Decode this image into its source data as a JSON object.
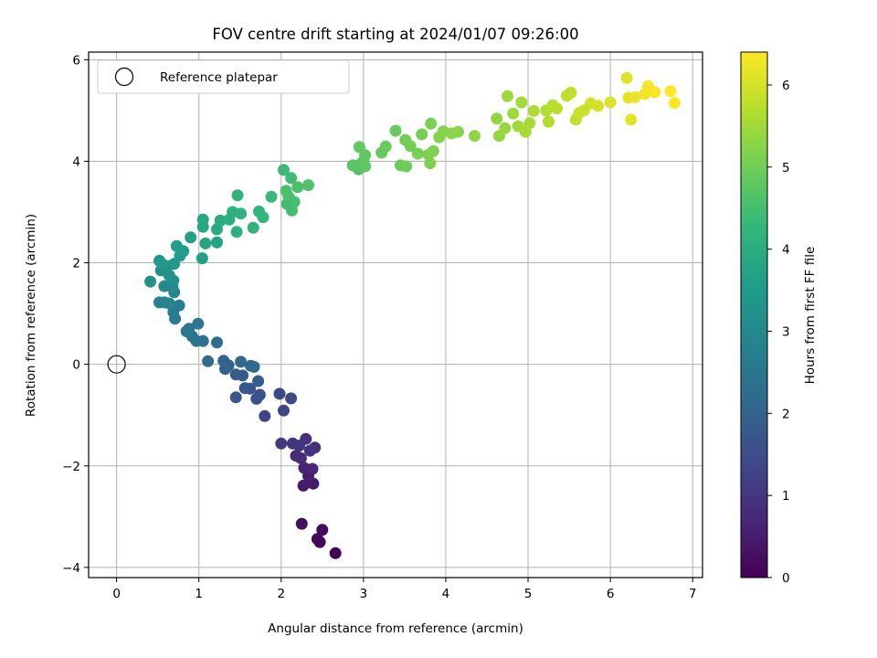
{
  "chart_data": {
    "type": "scatter",
    "title": "FOV centre drift starting at 2024/01/07 09:26:00",
    "xlabel": "Angular distance from reference (arcmin)",
    "ylabel": "Rotation from reference (arcmin)",
    "xlim": [
      -0.34,
      7.12
    ],
    "ylim": [
      -4.2,
      6.15
    ],
    "x_ticks": [
      "0",
      "1",
      "2",
      "3",
      "4",
      "5",
      "6",
      "7"
    ],
    "y_ticks": [
      "−4",
      "−2",
      "0",
      "2",
      "4",
      "6"
    ],
    "grid": true,
    "legend": {
      "placement": "top-left",
      "label": "Reference platepar"
    },
    "reference_point": {
      "x": 0,
      "y": 0
    },
    "colorbar": {
      "label": "Hours from first FF file",
      "range": [
        0,
        6.4
      ],
      "ticks": [
        "0",
        "1",
        "2",
        "3",
        "4",
        "5",
        "6"
      ],
      "colormap": "viridis",
      "colors": [
        "#440154",
        "#482878",
        "#3e4989",
        "#31688e",
        "#26828e",
        "#1f9e89",
        "#35b779",
        "#6ece58",
        "#b5de2b",
        "#fde725"
      ]
    },
    "series": [
      {
        "points": [
          [
            2.66,
            -3.72,
            0.05
          ],
          [
            2.47,
            -3.5,
            0.1
          ],
          [
            2.44,
            -3.44,
            0.15
          ],
          [
            2.5,
            -3.26,
            0.2
          ],
          [
            2.25,
            -3.14,
            0.25
          ],
          [
            2.39,
            -2.35,
            0.45
          ],
          [
            2.27,
            -2.39,
            0.5
          ],
          [
            2.33,
            -2.2,
            0.55
          ],
          [
            2.28,
            -2.04,
            0.6
          ],
          [
            2.38,
            -2.06,
            0.65
          ],
          [
            2.24,
            -1.85,
            0.75
          ],
          [
            2.18,
            -1.8,
            0.8
          ],
          [
            2.41,
            -1.64,
            0.85
          ],
          [
            2.3,
            -1.47,
            0.9
          ],
          [
            2.35,
            -1.7,
            0.95
          ],
          [
            2.22,
            -1.6,
            1.0
          ],
          [
            2.14,
            -1.56,
            1.05
          ],
          [
            2.0,
            -1.56,
            1.1
          ],
          [
            1.8,
            -1.02,
            1.3
          ],
          [
            2.03,
            -0.91,
            1.35
          ],
          [
            1.98,
            -0.58,
            1.4
          ],
          [
            2.12,
            -0.67,
            1.45
          ],
          [
            1.7,
            -0.68,
            1.55
          ],
          [
            1.74,
            -0.6,
            1.6
          ],
          [
            1.62,
            -0.48,
            1.65
          ],
          [
            1.56,
            -0.47,
            1.7
          ],
          [
            1.45,
            -0.65,
            1.75
          ],
          [
            1.53,
            -0.22,
            1.8
          ],
          [
            1.45,
            -0.2,
            1.85
          ],
          [
            1.72,
            -0.33,
            1.9
          ],
          [
            1.32,
            -0.09,
            1.95
          ],
          [
            1.36,
            -0.02,
            2.0
          ],
          [
            1.3,
            0.07,
            2.05
          ],
          [
            1.51,
            0.05,
            2.1
          ],
          [
            1.63,
            -0.03,
            2.15
          ],
          [
            1.67,
            -0.05,
            2.2
          ],
          [
            1.11,
            0.06,
            2.25
          ],
          [
            1.22,
            0.43,
            2.3
          ],
          [
            1.05,
            0.46,
            2.35
          ],
          [
            0.97,
            0.46,
            2.4
          ],
          [
            0.92,
            0.55,
            2.45
          ],
          [
            0.88,
            0.7,
            2.5
          ],
          [
            0.99,
            0.8,
            2.55
          ],
          [
            0.85,
            0.65,
            2.6
          ],
          [
            0.71,
            0.9,
            2.65
          ],
          [
            0.76,
            1.16,
            2.7
          ],
          [
            0.69,
            1.03,
            2.75
          ],
          [
            0.58,
            1.22,
            2.8
          ],
          [
            0.52,
            1.22,
            2.85
          ],
          [
            0.64,
            1.2,
            2.9
          ],
          [
            0.7,
            1.42,
            2.95
          ],
          [
            0.68,
            1.52,
            3.0
          ],
          [
            0.58,
            1.54,
            3.05
          ],
          [
            0.69,
            1.65,
            3.1
          ],
          [
            0.54,
            1.85,
            3.15
          ],
          [
            0.64,
            1.75,
            3.2
          ],
          [
            0.41,
            1.63,
            3.25
          ],
          [
            0.52,
            2.04,
            3.3
          ],
          [
            0.62,
            1.93,
            3.35
          ],
          [
            0.7,
            1.98,
            3.4
          ],
          [
            0.56,
            1.97,
            3.45
          ],
          [
            0.77,
            2.14,
            3.5
          ],
          [
            0.81,
            2.23,
            3.55
          ],
          [
            0.73,
            2.33,
            3.6
          ],
          [
            1.04,
            2.09,
            3.6
          ],
          [
            0.9,
            2.5,
            3.65
          ],
          [
            1.22,
            2.4,
            3.7
          ],
          [
            1.08,
            2.38,
            3.75
          ],
          [
            1.05,
            2.71,
            3.8
          ],
          [
            1.05,
            2.85,
            3.85
          ],
          [
            1.22,
            2.66,
            3.9
          ],
          [
            1.26,
            2.83,
            3.95
          ],
          [
            1.37,
            2.85,
            4.0
          ],
          [
            1.46,
            2.61,
            4.05
          ],
          [
            1.41,
            3.0,
            4.05
          ],
          [
            1.47,
            3.33,
            4.1
          ],
          [
            1.51,
            2.97,
            4.1
          ],
          [
            1.66,
            2.69,
            4.15
          ],
          [
            1.73,
            3.01,
            4.2
          ],
          [
            1.78,
            2.9,
            4.25
          ],
          [
            1.88,
            3.3,
            4.3
          ],
          [
            2.03,
            3.83,
            4.35
          ],
          [
            2.07,
            3.16,
            4.4
          ],
          [
            2.12,
            3.67,
            4.4
          ],
          [
            2.13,
            3.03,
            4.45
          ],
          [
            2.09,
            3.3,
            4.5
          ],
          [
            2.16,
            3.2,
            4.5
          ],
          [
            2.2,
            3.49,
            4.55
          ],
          [
            2.33,
            3.53,
            4.6
          ],
          [
            2.06,
            3.42,
            4.55
          ],
          [
            2.94,
            3.84,
            4.65
          ],
          [
            2.96,
            3.94,
            4.7
          ],
          [
            2.87,
            3.92,
            4.7
          ],
          [
            3.0,
            4.0,
            4.75
          ],
          [
            3.02,
            3.9,
            4.75
          ],
          [
            2.95,
            4.28,
            4.8
          ],
          [
            3.02,
            4.12,
            4.8
          ],
          [
            3.22,
            4.17,
            4.85
          ],
          [
            3.27,
            4.29,
            4.9
          ],
          [
            3.39,
            4.6,
            4.9
          ],
          [
            3.45,
            3.92,
            4.95
          ],
          [
            3.52,
            3.9,
            4.95
          ],
          [
            3.51,
            4.42,
            5.0
          ],
          [
            3.57,
            4.3,
            5.0
          ],
          [
            3.66,
            4.15,
            5.05
          ],
          [
            3.71,
            4.53,
            5.05
          ],
          [
            3.79,
            4.13,
            5.1
          ],
          [
            3.82,
            4.74,
            5.1
          ],
          [
            3.81,
            3.96,
            5.15
          ],
          [
            3.85,
            4.2,
            5.15
          ],
          [
            3.92,
            4.47,
            5.2
          ],
          [
            3.97,
            4.59,
            5.2
          ],
          [
            4.07,
            4.55,
            5.25
          ],
          [
            4.15,
            4.58,
            5.25
          ],
          [
            4.35,
            4.5,
            5.3
          ],
          [
            4.62,
            4.84,
            5.35
          ],
          [
            4.65,
            4.5,
            5.35
          ],
          [
            4.72,
            4.65,
            5.4
          ],
          [
            4.75,
            5.28,
            5.45
          ],
          [
            4.82,
            4.94,
            5.45
          ],
          [
            4.88,
            4.69,
            5.5
          ],
          [
            4.92,
            5.16,
            5.5
          ],
          [
            4.97,
            4.58,
            5.55
          ],
          [
            5.02,
            4.75,
            5.55
          ],
          [
            5.07,
            4.99,
            5.6
          ],
          [
            5.22,
            5.0,
            5.65
          ],
          [
            5.25,
            4.78,
            5.65
          ],
          [
            5.3,
            5.1,
            5.7
          ],
          [
            5.35,
            5.04,
            5.7
          ],
          [
            5.47,
            5.29,
            5.75
          ],
          [
            5.52,
            5.35,
            5.8
          ],
          [
            5.58,
            4.82,
            5.8
          ],
          [
            5.62,
            4.95,
            5.85
          ],
          [
            5.68,
            5.0,
            5.9
          ],
          [
            5.76,
            5.14,
            5.95
          ],
          [
            5.85,
            5.09,
            6.0
          ],
          [
            6.0,
            5.16,
            6.05
          ],
          [
            6.2,
            5.64,
            6.1
          ],
          [
            6.22,
            5.25,
            6.15
          ],
          [
            6.25,
            4.82,
            6.15
          ],
          [
            6.3,
            5.26,
            6.2
          ],
          [
            6.42,
            5.33,
            6.25
          ],
          [
            6.46,
            5.48,
            6.3
          ],
          [
            6.54,
            5.36,
            6.35
          ],
          [
            6.73,
            5.38,
            6.38
          ],
          [
            6.78,
            5.15,
            6.4
          ]
        ]
      }
    ]
  }
}
